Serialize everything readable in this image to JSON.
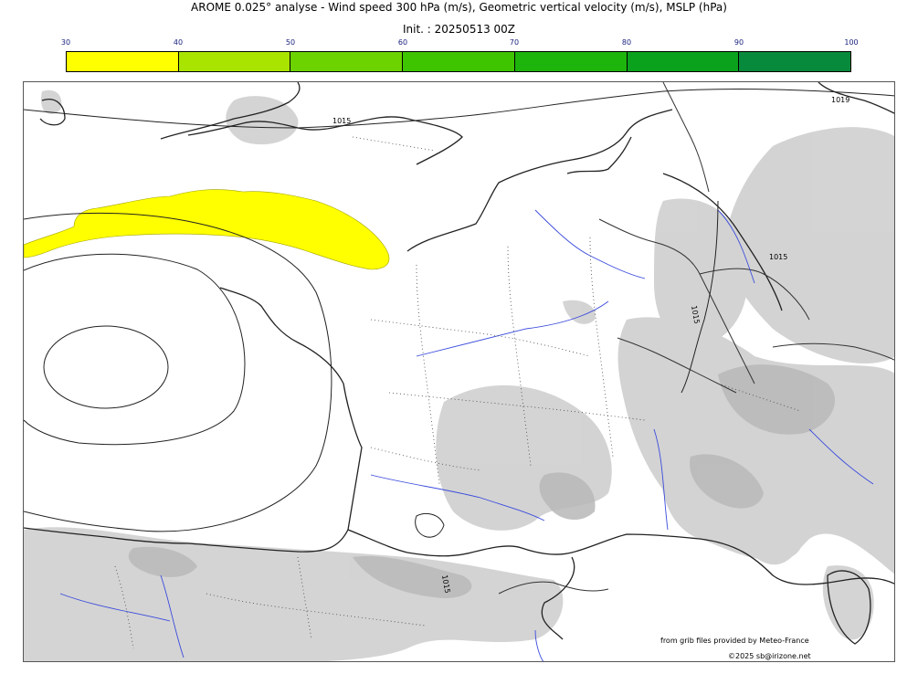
{
  "header": {
    "title": "AROME 0.025° analyse - Wind speed 300 hPa (m/s), Geometric vertical velocity (m/s), MSLP (hPa)",
    "init": "Init. : 20250513 00Z"
  },
  "colorbar": {
    "ticks": [
      "30",
      "40",
      "50",
      "60",
      "70",
      "80",
      "90",
      "100"
    ],
    "colors": [
      "#ffff00",
      "#a8e400",
      "#6cd300",
      "#3fc400",
      "#1db40c",
      "#0aa21c",
      "#088a3c",
      "#0b7548"
    ]
  },
  "map": {
    "isobar_labels": [
      "1015",
      "1019",
      "1015",
      "1015",
      "1015"
    ],
    "credits": {
      "source": "from grib files provided by Meteo-France",
      "copyright": "©2025 sb@irizone.net"
    }
  }
}
